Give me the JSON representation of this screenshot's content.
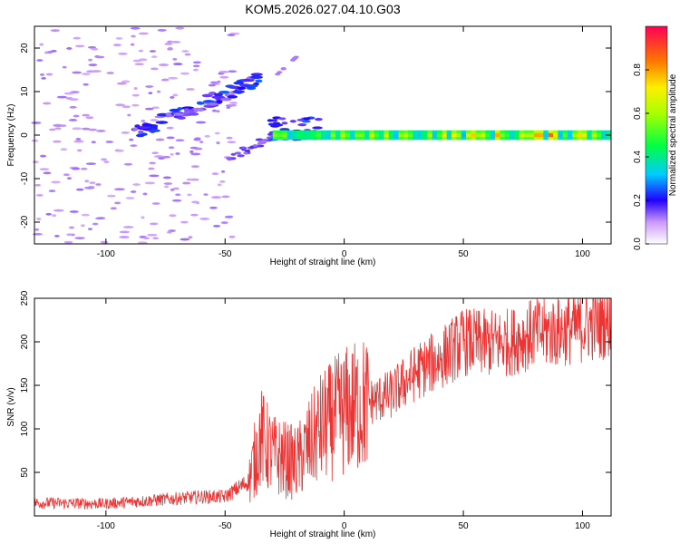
{
  "title": "KOM5.2026.027.04.10.G03",
  "chart_data": [
    {
      "type": "heatmap",
      "xlabel": "Height of straight line (km)",
      "ylabel": "Frequency (Hz)",
      "xlim": [
        -130,
        112
      ],
      "ylim": [
        -25,
        25
      ],
      "xticks": [
        -100,
        -50,
        0,
        50,
        100
      ],
      "yticks": [
        -20,
        -10,
        0,
        10,
        20
      ],
      "colorbar": {
        "label": "Normalized spectral amplitude",
        "range": [
          0,
          1
        ],
        "ticks": [
          0.0,
          0.2,
          0.4,
          0.6,
          0.8
        ]
      },
      "features": [
        {
          "name": "sloped-branch",
          "x": [
            -90,
            -35
          ],
          "freq": [
            0,
            13
          ],
          "amplitude": 0.25
        },
        {
          "name": "main-line",
          "x": [
            -30,
            112
          ],
          "freq": [
            0,
            0
          ],
          "amplitude_range": [
            0.3,
            0.95
          ]
        },
        {
          "name": "downward-branch",
          "x": [
            -50,
            -30
          ],
          "freq": [
            -6,
            0
          ],
          "amplitude": 0.15
        },
        {
          "name": "upper-fragment",
          "x": [
            -28,
            -20
          ],
          "freq": [
            14,
            18
          ],
          "amplitude": 0.12
        }
      ]
    },
    {
      "type": "line",
      "xlabel": "Height of straight line (km)",
      "ylabel": "SNR (v/v)",
      "xlim": [
        -130,
        112
      ],
      "ylim": [
        0,
        250
      ],
      "xticks": [
        -100,
        -50,
        0,
        50,
        100
      ],
      "yticks": [
        50,
        100,
        150,
        200,
        250
      ],
      "color": "#ee3333",
      "series": [
        {
          "name": "SNR",
          "x": [
            -130,
            -100,
            -80,
            -60,
            -50,
            -40,
            -35,
            -30,
            -20,
            -10,
            0,
            10,
            20,
            30,
            40,
            50,
            60,
            70,
            80,
            90,
            100,
            112
          ],
          "values": [
            15,
            14,
            18,
            22,
            22,
            40,
            90,
            70,
            60,
            100,
            120,
            130,
            140,
            165,
            180,
            200,
            198,
            200,
            210,
            212,
            218,
            225
          ]
        }
      ]
    }
  ]
}
